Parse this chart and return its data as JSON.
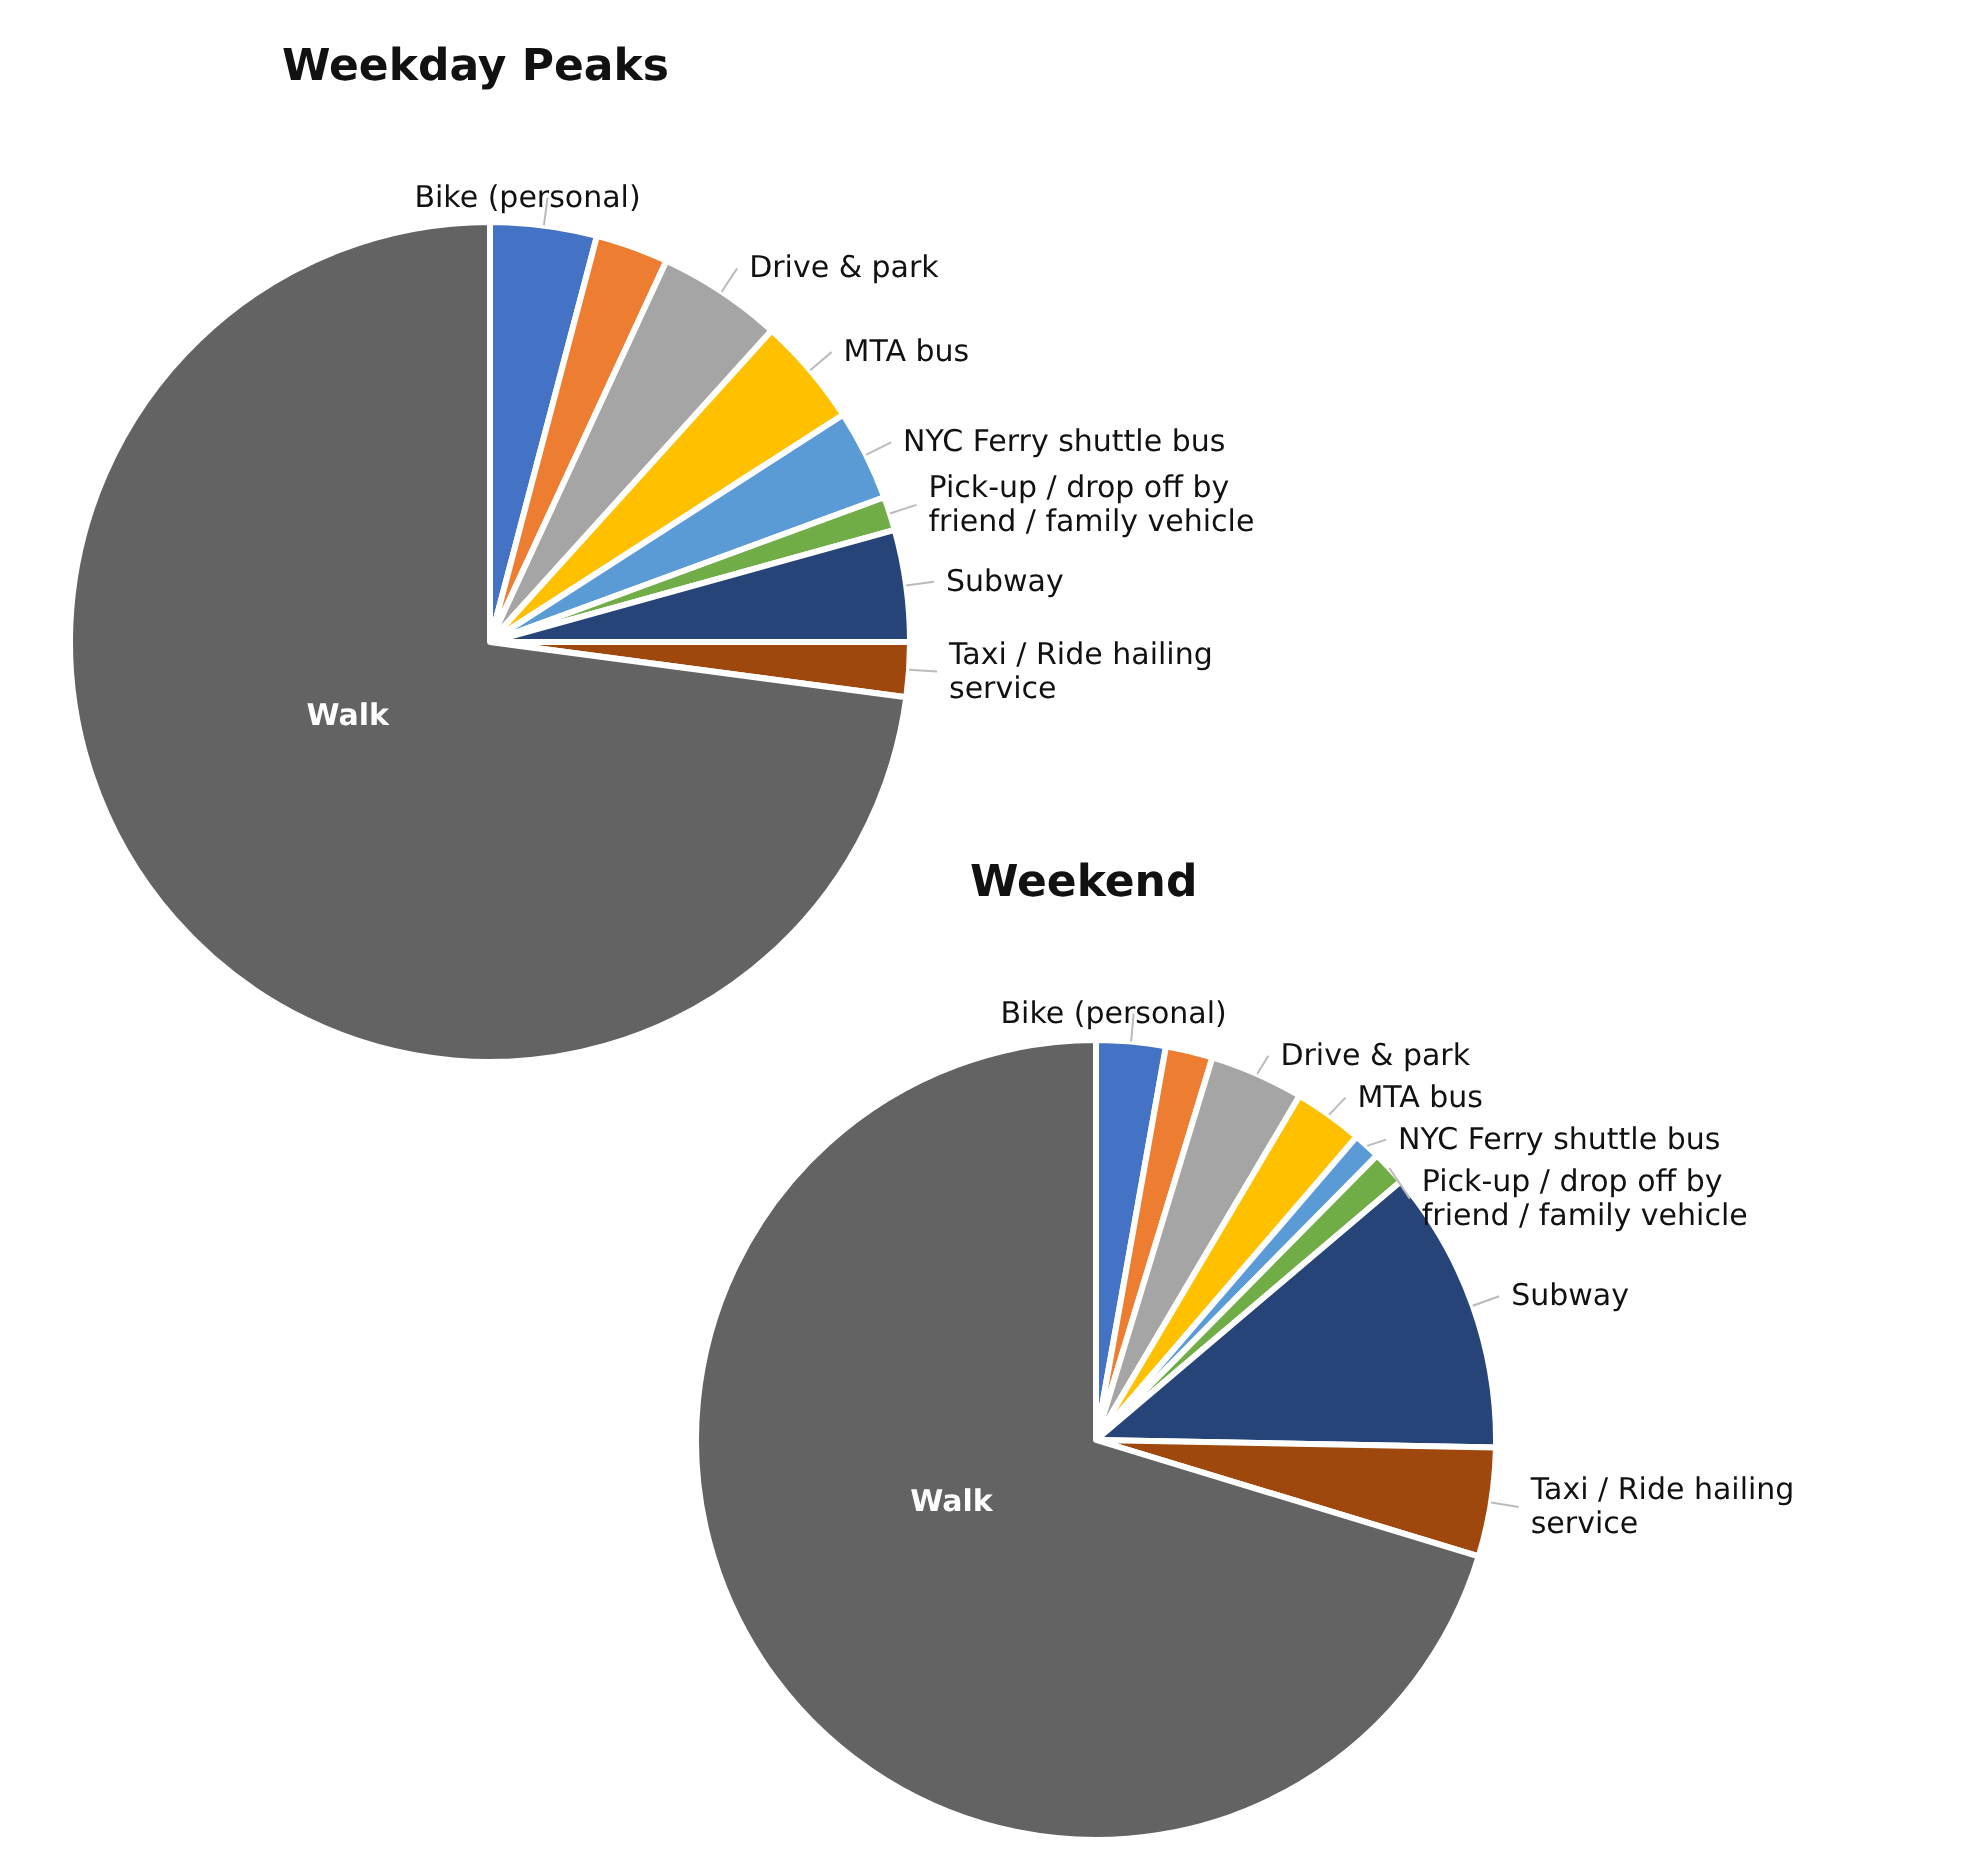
{
  "chart_data": [
    {
      "type": "pie",
      "title": "Weekday Peaks",
      "categories": [
        "Bike (personal)",
        null,
        "Drive & park",
        "MTA bus",
        "NYC Ferry shuttle bus",
        "Pick-up / drop off by friend / family vehicle",
        "Subway",
        "Taxi / Ride hailing service",
        "Walk"
      ],
      "values": [
        4.1,
        2.8,
        4.8,
        4.2,
        3.5,
        1.3,
        4.3,
        2.1,
        72.9
      ],
      "colors": [
        "#4472c4",
        "#ed7d31",
        "#a5a5a5",
        "#ffc000",
        "#5b9bd5",
        "#70ad47",
        "#264478",
        "#9e480e",
        "#636363"
      ]
    },
    {
      "type": "pie",
      "title": "Weekend",
      "categories": [
        "Bike (personal)",
        null,
        "Drive & park",
        "MTA bus",
        "NYC Ferry shuttle bus",
        "Pick-up / drop off by friend / family vehicle",
        "Subway",
        "Taxi / Ride hailing service",
        "Walk"
      ],
      "values": [
        2.8,
        1.9,
        3.8,
        2.8,
        1.1,
        1.4,
        11.5,
        4.4,
        70.3
      ],
      "colors": [
        "#4472c4",
        "#ed7d31",
        "#a5a5a5",
        "#ffc000",
        "#5b9bd5",
        "#70ad47",
        "#264478",
        "#9e480e",
        "#636363"
      ]
    }
  ]
}
